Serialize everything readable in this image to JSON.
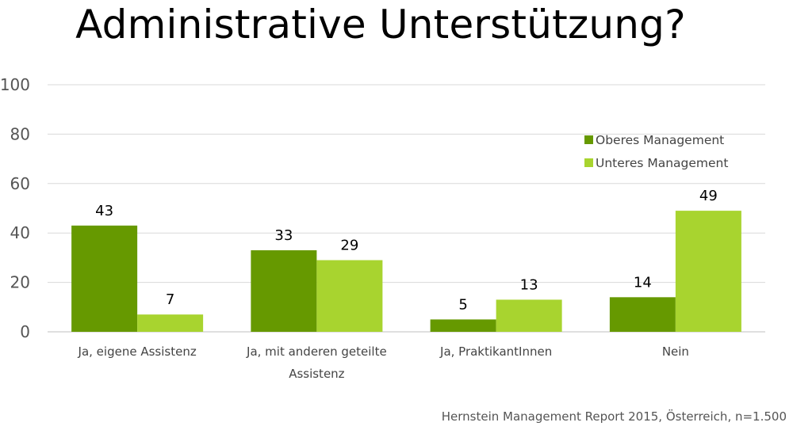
{
  "chart_data": {
    "type": "bar",
    "title": "Administrative Unterstützung?",
    "categories": [
      [
        "Ja, eigene Assistenz"
      ],
      [
        "Ja, mit anderen geteilte",
        "Assistenz"
      ],
      [
        "Ja, PraktikantInnen"
      ],
      [
        "Nein"
      ]
    ],
    "series": [
      {
        "name": "Oberes Management",
        "values": [
          43,
          33,
          5,
          14
        ],
        "color": "#669900"
      },
      {
        "name": "Unteres Management",
        "values": [
          7,
          29,
          13,
          49
        ],
        "color": "#a8d42f"
      }
    ],
    "ylim": [
      0,
      100
    ],
    "yticks": [
      0,
      20,
      40,
      60,
      80,
      100
    ],
    "grid": true,
    "legend": "top-right",
    "xlabel": "",
    "ylabel": ""
  },
  "source": "Hernstein Management Report 2015, Österreich, n=1.500"
}
